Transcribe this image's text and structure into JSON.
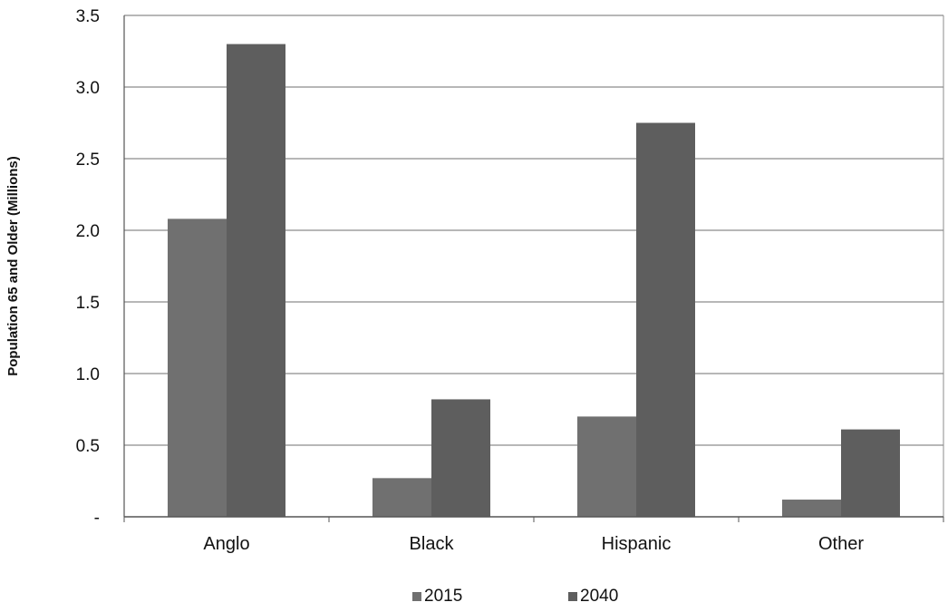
{
  "chart_data": {
    "type": "bar",
    "title": "",
    "xlabel": "",
    "ylabel": "Population 65 and Older (Millions)",
    "categories": [
      "Anglo",
      "Black",
      "Hispanic",
      "Other"
    ],
    "series": [
      {
        "name": "2015",
        "values": [
          2.08,
          0.27,
          0.7,
          0.12
        ],
        "color": "#707070"
      },
      {
        "name": "2040",
        "values": [
          3.3,
          0.82,
          2.75,
          0.61
        ],
        "color": "#5e5e5e"
      }
    ],
    "ylim": [
      0,
      3.5
    ],
    "yticks": [
      {
        "value": 0,
        "label": "-"
      },
      {
        "value": 0.5,
        "label": "0.5"
      },
      {
        "value": 1.0,
        "label": "1.0"
      },
      {
        "value": 1.5,
        "label": "1.5"
      },
      {
        "value": 2.0,
        "label": "2.0"
      },
      {
        "value": 2.5,
        "label": "2.5"
      },
      {
        "value": 3.0,
        "label": "3.0"
      },
      {
        "value": 3.5,
        "label": "3.5"
      }
    ],
    "grid": true,
    "legend_position": "bottom",
    "colors": {
      "gridline": "#8c8c8c",
      "axis": "#555555"
    }
  }
}
